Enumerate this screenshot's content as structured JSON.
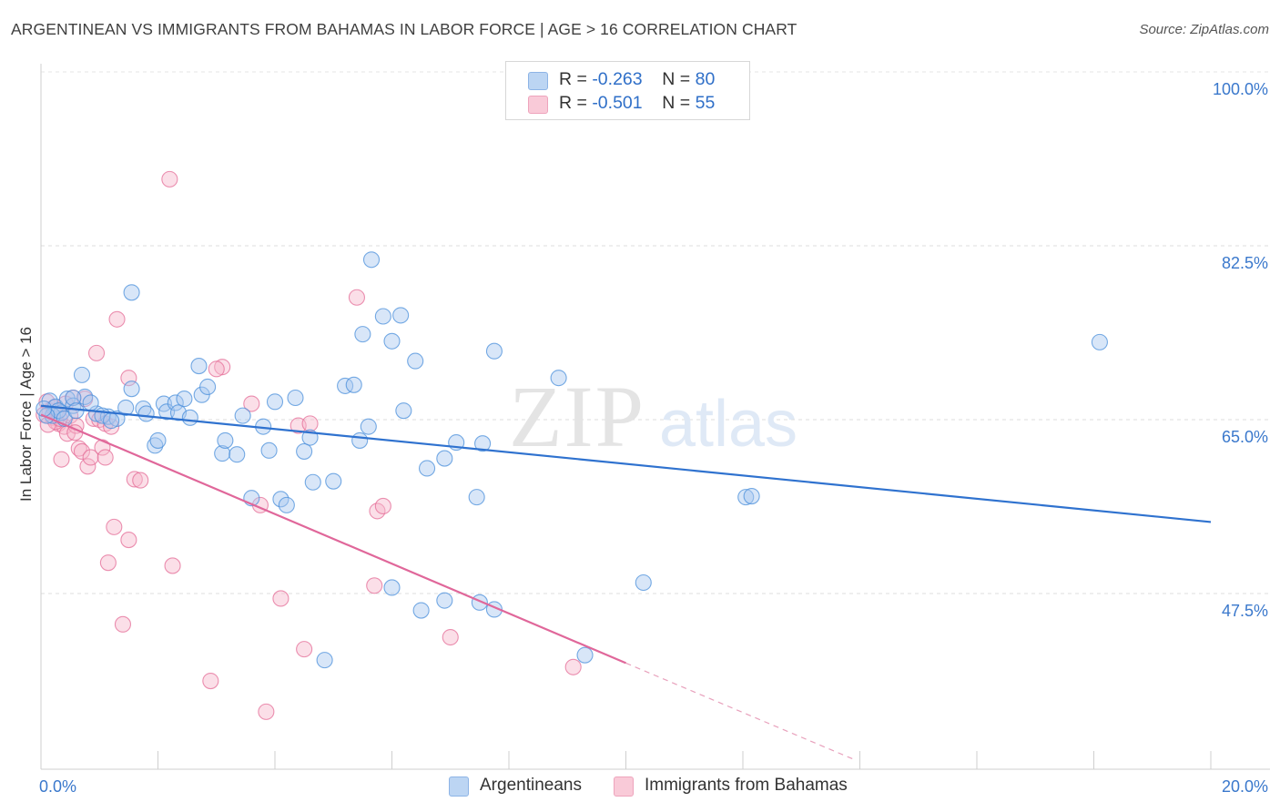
{
  "title": "ARGENTINEAN VS IMMIGRANTS FROM BAHAMAS IN LABOR FORCE | AGE > 16 CORRELATION CHART",
  "source": "Source: ZipAtlas.com",
  "watermark": {
    "zip": "ZIP",
    "atlas": "atlas"
  },
  "legend": [
    {
      "r_label": "R = ",
      "r_value": "-0.263",
      "n_label": "N = ",
      "n_value": "80",
      "color": "#a8c8f0"
    },
    {
      "r_label": "R = ",
      "r_value": "-0.501",
      "n_label": "N = ",
      "n_value": "55",
      "color": "#f7b8cb"
    }
  ],
  "chart_data": {
    "type": "scatter",
    "title": "ARGENTINEAN VS IMMIGRANTS FROM BAHAMAS IN LABOR FORCE | AGE > 16 CORRELATION CHART",
    "xlabel": "",
    "ylabel": "In Labor Force | Age > 16",
    "x_tick_labels": [
      "0.0%",
      "20.0%"
    ],
    "y_tick_labels": [
      "100.0%",
      "82.5%",
      "65.0%",
      "47.5%"
    ],
    "y_ticks": [
      100,
      82.5,
      65,
      47.5
    ],
    "xlim": [
      0,
      20
    ],
    "ylim": [
      30,
      102
    ],
    "grid": true,
    "legend_position": "top-center",
    "series": [
      {
        "name": "Argentineans",
        "color": "#4a8fdb",
        "fill": "#a8c8f0",
        "trend": {
          "x": [
            0,
            20
          ],
          "y": [
            66.4,
            54.7
          ],
          "dashed_from": null
        },
        "points": [
          [
            0.15,
            66.9
          ],
          [
            0.25,
            66.3
          ],
          [
            0.35,
            65.7
          ],
          [
            0.45,
            67.1
          ],
          [
            0.55,
            66.4
          ],
          [
            0.75,
            67.3
          ],
          [
            0.95,
            65.6
          ],
          [
            1.15,
            65.3
          ],
          [
            1.3,
            65.1
          ],
          [
            0.7,
            69.5
          ],
          [
            0.2,
            65.4
          ],
          [
            0.3,
            65.9
          ],
          [
            0.55,
            67.2
          ],
          [
            1.05,
            65.4
          ],
          [
            1.45,
            66.2
          ],
          [
            1.55,
            68.1
          ],
          [
            1.75,
            66.1
          ],
          [
            1.8,
            65.6
          ],
          [
            1.95,
            62.4
          ],
          [
            2.0,
            62.9
          ],
          [
            2.1,
            66.6
          ],
          [
            2.15,
            65.8
          ],
          [
            2.3,
            66.7
          ],
          [
            2.35,
            65.7
          ],
          [
            2.45,
            67.1
          ],
          [
            2.55,
            65.2
          ],
          [
            2.7,
            70.4
          ],
          [
            2.75,
            67.5
          ],
          [
            2.85,
            68.3
          ],
          [
            1.55,
            77.8
          ],
          [
            3.1,
            61.6
          ],
          [
            3.15,
            62.9
          ],
          [
            3.35,
            61.5
          ],
          [
            3.45,
            65.4
          ],
          [
            3.6,
            57.1
          ],
          [
            3.8,
            64.3
          ],
          [
            3.9,
            61.9
          ],
          [
            4.0,
            66.8
          ],
          [
            4.1,
            57.0
          ],
          [
            4.2,
            56.4
          ],
          [
            4.35,
            67.2
          ],
          [
            4.5,
            61.8
          ],
          [
            4.6,
            63.2
          ],
          [
            4.65,
            58.7
          ],
          [
            5.0,
            58.8
          ],
          [
            5.2,
            68.4
          ],
          [
            5.35,
            68.5
          ],
          [
            5.45,
            62.9
          ],
          [
            5.5,
            73.6
          ],
          [
            5.6,
            64.3
          ],
          [
            5.65,
            81.1
          ],
          [
            5.85,
            75.4
          ],
          [
            6.0,
            72.9
          ],
          [
            6.15,
            75.5
          ],
          [
            6.2,
            65.9
          ],
          [
            6.4,
            70.9
          ],
          [
            6.6,
            60.1
          ],
          [
            6.9,
            61.1
          ],
          [
            7.1,
            62.7
          ],
          [
            7.45,
            57.2
          ],
          [
            7.55,
            62.6
          ],
          [
            7.75,
            71.9
          ],
          [
            8.85,
            69.2
          ],
          [
            10.3,
            48.6
          ],
          [
            12.05,
            57.2
          ],
          [
            12.15,
            57.3
          ],
          [
            18.1,
            72.8
          ],
          [
            6.0,
            48.1
          ],
          [
            6.5,
            45.8
          ],
          [
            6.9,
            46.8
          ],
          [
            7.5,
            46.6
          ],
          [
            7.75,
            45.9
          ],
          [
            4.85,
            40.8
          ],
          [
            9.3,
            41.3
          ],
          [
            0.1,
            65.4
          ],
          [
            0.4,
            65.1
          ],
          [
            0.6,
            65.9
          ],
          [
            0.85,
            66.7
          ],
          [
            1.2,
            64.9
          ],
          [
            0.05,
            66.1
          ]
        ]
      },
      {
        "name": "Immigrants from Bahamas",
        "color": "#e46c97",
        "fill": "#f7b8cb",
        "trend": {
          "x": [
            0,
            10
          ],
          "y": [
            65.5,
            40.5
          ],
          "dashed_to": {
            "x": 13.9,
            "y": 30.8
          }
        },
        "points": [
          [
            0.1,
            66.8
          ],
          [
            0.2,
            65.2
          ],
          [
            0.3,
            64.6
          ],
          [
            0.4,
            64.3
          ],
          [
            0.45,
            63.6
          ],
          [
            0.5,
            65.4
          ],
          [
            0.6,
            64.4
          ],
          [
            0.65,
            62.1
          ],
          [
            0.7,
            61.8
          ],
          [
            0.8,
            60.3
          ],
          [
            0.85,
            61.2
          ],
          [
            0.9,
            65.1
          ],
          [
            1.0,
            65.0
          ],
          [
            1.1,
            64.6
          ],
          [
            1.2,
            64.3
          ],
          [
            0.35,
            61.0
          ],
          [
            0.15,
            65.9
          ],
          [
            0.25,
            64.8
          ],
          [
            0.55,
            67.2
          ],
          [
            0.75,
            67.1
          ],
          [
            0.95,
            71.7
          ],
          [
            1.3,
            75.1
          ],
          [
            1.5,
            69.2
          ],
          [
            1.6,
            59.0
          ],
          [
            1.7,
            58.9
          ],
          [
            1.25,
            54.2
          ],
          [
            1.5,
            52.9
          ],
          [
            1.15,
            50.6
          ],
          [
            2.25,
            50.3
          ],
          [
            1.4,
            44.4
          ],
          [
            2.2,
            89.2
          ],
          [
            3.1,
            70.3
          ],
          [
            3.0,
            70.1
          ],
          [
            3.6,
            66.6
          ],
          [
            3.75,
            56.4
          ],
          [
            4.1,
            47.0
          ],
          [
            4.4,
            64.4
          ],
          [
            4.5,
            41.9
          ],
          [
            4.6,
            64.6
          ],
          [
            5.4,
            77.3
          ],
          [
            5.75,
            55.8
          ],
          [
            5.85,
            56.3
          ],
          [
            5.7,
            48.3
          ],
          [
            7.0,
            43.1
          ],
          [
            9.1,
            40.1
          ],
          [
            2.9,
            38.7
          ],
          [
            3.85,
            35.6
          ],
          [
            0.05,
            65.5
          ],
          [
            0.12,
            64.5
          ],
          [
            0.22,
            66.2
          ],
          [
            0.32,
            65.1
          ],
          [
            0.42,
            66.6
          ],
          [
            0.58,
            63.7
          ],
          [
            1.05,
            62.2
          ],
          [
            1.1,
            61.2
          ]
        ]
      }
    ]
  },
  "bottom_legend": [
    {
      "label": "Argentineans",
      "color": "#a8c8f0"
    },
    {
      "label": "Immigrants from Bahamas",
      "color": "#f7b8cb"
    }
  ]
}
